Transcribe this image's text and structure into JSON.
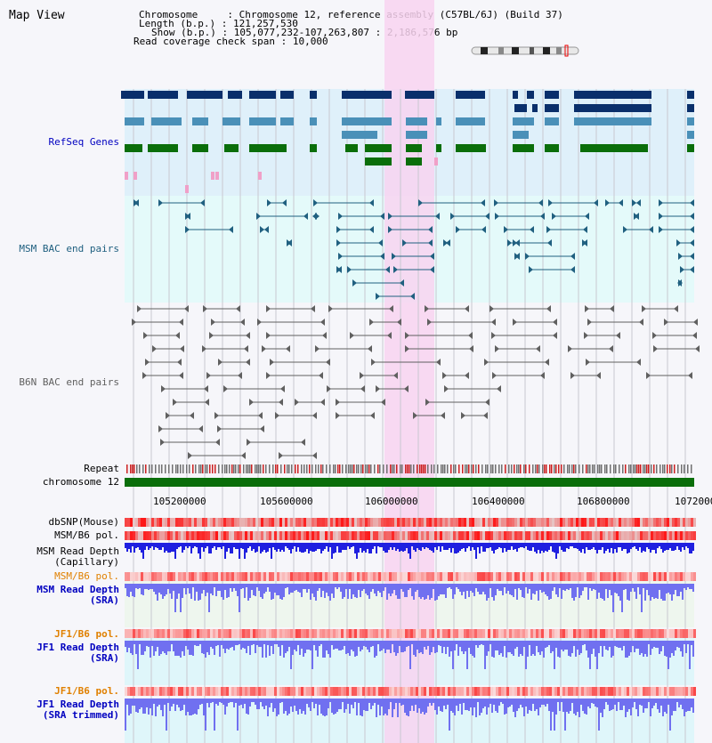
{
  "view_title": "Map View",
  "info": {
    "chromosome_label": "Chromosome",
    "chromosome_value": "Chromosome 12, reference assembly (C57BL/6J) (Build 37)",
    "length_label": "Length (b.p.)",
    "length_value": "121,257,530",
    "show_label": "Show (b.p.)",
    "show_value": "105,077,232-107,263,807 : 2,186,576 bp",
    "coverage_label": "Read coverage check span",
    "coverage_value": "10,000"
  },
  "tracks": {
    "refseq": "RefSeq Genes",
    "msm_bac": "MSM BAC end pairs",
    "b6n_bac": "B6N BAC end pairs",
    "repeat": "Repeat",
    "chromosome": "chromosome 12",
    "dbsnp": "dbSNP(Mouse)",
    "msm_b6_pol_1": "MSM/B6 pol.",
    "msm_depth_cap_1": "MSM Read Depth",
    "msm_depth_cap_2": "(Capillary)",
    "msm_b6_pol_2": "MSM/B6 pol.",
    "msm_depth_sra_1": "MSM Read Depth",
    "msm_depth_sra_2": "(SRA)",
    "jf1_b6_pol_1": "JF1/B6 pol.",
    "jf1_depth_sra_1": "JF1 Read Depth",
    "jf1_depth_sra_2": "(SRA)",
    "jf1_b6_pol_2": "JF1/B6 pol.",
    "jf1_depth_trim_1": "JF1 Read Depth",
    "jf1_depth_trim_2": "(SRA trimmed)"
  },
  "axis": {
    "ticks": [
      "105200000",
      "105600000",
      "106000000",
      "106400000",
      "106800000",
      "107200000"
    ]
  },
  "colors": {
    "refseq_bg": "#dff0fa",
    "bac_bg": "#e4fafa",
    "highlight": "#f8d4f0",
    "gene_dark": "#0a2f6b",
    "gene_mid": "#4a90b8",
    "gene_green": "#0a6e0a",
    "msm_pair": "#206080",
    "b6n_pair": "#606060",
    "chrom_bar": "#0a6e0a",
    "depth_blue": "#2020e0",
    "depth_light": "#7070f0"
  }
}
